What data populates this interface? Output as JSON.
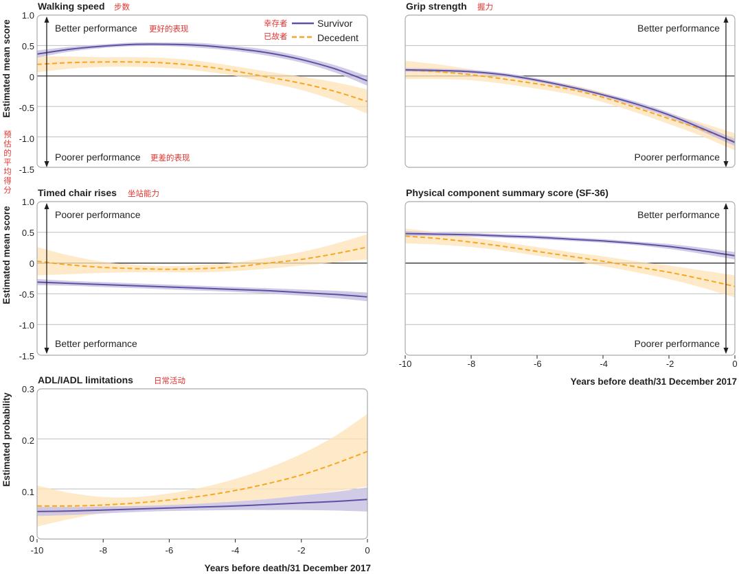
{
  "chart_data": [
    {
      "id": "walking",
      "type": "line",
      "title": "Walking speed",
      "title_zh": "步数",
      "ylabel": "Estimated mean score",
      "ylabel_zh": "预估的平均得分",
      "xlim": [
        -10,
        0
      ],
      "ylim": [
        -1.5,
        1.0
      ],
      "yticks": [
        1.0,
        0.5,
        0,
        -0.5,
        -1.0,
        -1.5
      ],
      "ytick_labels": [
        "1.0",
        "0.5",
        "0",
        "-0.5",
        "-1.0",
        "-1.5"
      ],
      "grid": true,
      "annotations": {
        "top": "Better performance",
        "top_zh": "更好的表现",
        "bottom": "Poorer performance",
        "bottom_zh": "更差的表现",
        "position": "left"
      },
      "legend": {
        "placement": "top-right",
        "entries": [
          {
            "label": "Survivor",
            "label_zh": "幸存者",
            "style": "solid"
          },
          {
            "label": "Decedent",
            "label_zh": "已故者",
            "style": "dashed"
          }
        ]
      },
      "series": [
        {
          "name": "Survivor",
          "x": [
            -10,
            -9,
            -8,
            -7,
            -6,
            -5,
            -4,
            -3,
            -2,
            -1,
            0
          ],
          "values": [
            0.36,
            0.44,
            0.49,
            0.52,
            0.52,
            0.5,
            0.45,
            0.38,
            0.27,
            0.12,
            -0.08
          ],
          "ci_low": [
            0.3,
            0.4,
            0.46,
            0.49,
            0.49,
            0.46,
            0.41,
            0.33,
            0.22,
            0.06,
            -0.16
          ],
          "ci_high": [
            0.42,
            0.48,
            0.52,
            0.55,
            0.55,
            0.54,
            0.49,
            0.43,
            0.32,
            0.18,
            0.0
          ]
        },
        {
          "name": "Decedent",
          "x": [
            -10,
            -9,
            -8,
            -7,
            -6,
            -5,
            -4,
            -3,
            -2,
            -1,
            0
          ],
          "values": [
            0.19,
            0.22,
            0.23,
            0.23,
            0.21,
            0.16,
            0.08,
            -0.02,
            -0.12,
            -0.25,
            -0.42
          ],
          "ci_low": [
            0.06,
            0.12,
            0.15,
            0.15,
            0.13,
            0.08,
            0.0,
            -0.11,
            -0.23,
            -0.4,
            -0.62
          ],
          "ci_high": [
            0.32,
            0.32,
            0.31,
            0.31,
            0.29,
            0.24,
            0.16,
            0.07,
            -0.01,
            -0.1,
            -0.22
          ]
        }
      ]
    },
    {
      "id": "grip",
      "type": "line",
      "title": "Grip strength",
      "title_zh": "握力",
      "xlim": [
        -10,
        0
      ],
      "ylim": [
        -1.5,
        1.0
      ],
      "yticks": [
        1.0,
        0.5,
        0,
        -0.5,
        -1.0,
        -1.5
      ],
      "grid": true,
      "annotations": {
        "top": "Better performance",
        "bottom": "Poorer performance",
        "position": "right"
      },
      "series": [
        {
          "name": "Survivor",
          "x": [
            -10,
            -9,
            -8,
            -7,
            -6,
            -5,
            -4,
            -3,
            -2,
            -1,
            0
          ],
          "values": [
            0.1,
            0.09,
            0.07,
            0.02,
            -0.07,
            -0.18,
            -0.31,
            -0.46,
            -0.64,
            -0.86,
            -1.09
          ],
          "ci_low": [
            0.07,
            0.06,
            0.04,
            -0.01,
            -0.1,
            -0.21,
            -0.34,
            -0.5,
            -0.68,
            -0.91,
            -1.15
          ],
          "ci_high": [
            0.13,
            0.12,
            0.1,
            0.05,
            -0.04,
            -0.15,
            -0.28,
            -0.42,
            -0.6,
            -0.81,
            -1.03
          ]
        },
        {
          "name": "Decedent",
          "x": [
            -10,
            -9,
            -8,
            -7,
            -6,
            -5,
            -4,
            -3,
            -2,
            -1,
            0
          ],
          "values": [
            0.1,
            0.07,
            0.02,
            -0.05,
            -0.13,
            -0.22,
            -0.35,
            -0.52,
            -0.7,
            -0.88,
            -1.08
          ],
          "ci_low": [
            -0.05,
            -0.05,
            -0.07,
            -0.13,
            -0.21,
            -0.3,
            -0.43,
            -0.6,
            -0.79,
            -0.99,
            -1.22
          ],
          "ci_high": [
            0.25,
            0.19,
            0.11,
            0.03,
            -0.05,
            -0.14,
            -0.27,
            -0.44,
            -0.61,
            -0.77,
            -0.94
          ]
        }
      ]
    },
    {
      "id": "chair",
      "type": "line",
      "title": "Timed chair rises",
      "title_zh": "坐站能力",
      "ylabel": "Estimated mean score",
      "xlim": [
        -10,
        0
      ],
      "ylim": [
        -1.5,
        1.0
      ],
      "yticks": [
        1.0,
        0.5,
        0,
        -0.5,
        -1.0,
        -1.5
      ],
      "ytick_labels": [
        "1.0",
        "0.5",
        "0",
        "-0.5",
        "-1.0",
        "-1.5"
      ],
      "grid": true,
      "annotations": {
        "top": "Poorer performance",
        "bottom": "Better performance",
        "position": "left"
      },
      "series": [
        {
          "name": "Survivor",
          "x": [
            -10,
            -9,
            -8,
            -7,
            -6,
            -5,
            -4,
            -3,
            -2,
            -1,
            0
          ],
          "values": [
            -0.31,
            -0.33,
            -0.35,
            -0.37,
            -0.39,
            -0.41,
            -0.43,
            -0.45,
            -0.48,
            -0.51,
            -0.55
          ],
          "ci_low": [
            -0.36,
            -0.37,
            -0.39,
            -0.41,
            -0.43,
            -0.45,
            -0.47,
            -0.5,
            -0.53,
            -0.57,
            -0.62
          ],
          "ci_high": [
            -0.26,
            -0.29,
            -0.31,
            -0.33,
            -0.35,
            -0.37,
            -0.39,
            -0.41,
            -0.43,
            -0.45,
            -0.48
          ]
        },
        {
          "name": "Decedent",
          "x": [
            -10,
            -9,
            -8,
            -7,
            -6,
            -5,
            -4,
            -3,
            -2,
            -1,
            0
          ],
          "values": [
            0.03,
            -0.03,
            -0.07,
            -0.09,
            -0.1,
            -0.09,
            -0.06,
            0.0,
            0.06,
            0.15,
            0.26
          ],
          "ci_low": [
            -0.2,
            -0.18,
            -0.16,
            -0.15,
            -0.15,
            -0.15,
            -0.13,
            -0.09,
            -0.04,
            0.01,
            0.06
          ],
          "ci_high": [
            0.26,
            0.12,
            0.02,
            -0.03,
            -0.05,
            -0.03,
            0.01,
            0.09,
            0.18,
            0.31,
            0.47
          ]
        }
      ]
    },
    {
      "id": "pcs",
      "type": "line",
      "title": "Physical component summary score (SF-36)",
      "xlabel": "Years before death/31 December 2017",
      "xlim": [
        -10,
        0
      ],
      "xticks": [
        -10,
        -8,
        -6,
        -4,
        -2,
        0
      ],
      "xtick_labels": [
        "-10",
        "-8",
        "-6",
        "-4",
        "-2",
        "0"
      ],
      "ylim": [
        -1.5,
        1.0
      ],
      "yticks": [
        1.0,
        0.5,
        0,
        -0.5,
        -1.0,
        -1.5
      ],
      "grid": true,
      "annotations": {
        "top": "Better performance",
        "bottom": "Poorer performance",
        "position": "right"
      },
      "series": [
        {
          "name": "Survivor",
          "x": [
            -10,
            -9,
            -8,
            -7,
            -6,
            -5,
            -4,
            -3,
            -2,
            -1,
            0
          ],
          "values": [
            0.48,
            0.47,
            0.46,
            0.44,
            0.42,
            0.39,
            0.36,
            0.32,
            0.27,
            0.2,
            0.12
          ],
          "ci_low": [
            0.44,
            0.44,
            0.43,
            0.41,
            0.39,
            0.36,
            0.33,
            0.29,
            0.23,
            0.15,
            0.06
          ],
          "ci_high": [
            0.52,
            0.5,
            0.49,
            0.47,
            0.45,
            0.42,
            0.39,
            0.35,
            0.31,
            0.25,
            0.18
          ]
        },
        {
          "name": "Decedent",
          "x": [
            -10,
            -9,
            -8,
            -7,
            -6,
            -5,
            -4,
            -3,
            -2,
            -1,
            0
          ],
          "values": [
            0.44,
            0.4,
            0.34,
            0.27,
            0.19,
            0.11,
            0.03,
            -0.06,
            -0.15,
            -0.26,
            -0.38
          ],
          "ci_low": [
            0.32,
            0.3,
            0.26,
            0.2,
            0.12,
            0.04,
            -0.05,
            -0.15,
            -0.26,
            -0.4,
            -0.56
          ],
          "ci_high": [
            0.56,
            0.5,
            0.42,
            0.34,
            0.26,
            0.18,
            0.11,
            0.03,
            -0.04,
            -0.12,
            -0.2
          ]
        }
      ]
    },
    {
      "id": "adl",
      "type": "line",
      "title": "ADL/IADL limitations",
      "title_zh": "日常活动",
      "ylabel": "Estimated probability",
      "xlabel": "Years before death/31 December 2017",
      "xlim": [
        -10,
        0
      ],
      "xticks": [
        -10,
        -8,
        -6,
        -4,
        -2,
        0
      ],
      "xtick_labels": [
        "-10",
        "-8",
        "-6",
        "-4",
        "-2",
        "0"
      ],
      "ylim": [
        0,
        0.3
      ],
      "yticks": [
        0.3,
        0.2,
        0.1,
        0
      ],
      "ytick_labels": [
        "0.3",
        "0.2",
        "0.1",
        "0"
      ],
      "grid": true,
      "series": [
        {
          "name": "Survivor",
          "x": [
            -10,
            -9,
            -8,
            -7,
            -6,
            -5,
            -4,
            -3,
            -2,
            -1,
            0
          ],
          "values": [
            0.055,
            0.056,
            0.058,
            0.06,
            0.062,
            0.064,
            0.066,
            0.069,
            0.072,
            0.075,
            0.079
          ],
          "ci_low": [
            0.046,
            0.048,
            0.051,
            0.054,
            0.056,
            0.057,
            0.058,
            0.058,
            0.058,
            0.057,
            0.055
          ],
          "ci_high": [
            0.064,
            0.064,
            0.065,
            0.066,
            0.068,
            0.071,
            0.075,
            0.08,
            0.087,
            0.094,
            0.103
          ]
        },
        {
          "name": "Decedent",
          "x": [
            -10,
            -9,
            -8,
            -7,
            -6,
            -5,
            -4,
            -3,
            -2,
            -1,
            0
          ],
          "values": [
            0.066,
            0.066,
            0.068,
            0.072,
            0.078,
            0.086,
            0.097,
            0.111,
            0.128,
            0.15,
            0.175
          ],
          "ci_low": [
            0.025,
            0.04,
            0.052,
            0.06,
            0.065,
            0.07,
            0.075,
            0.08,
            0.087,
            0.095,
            0.105
          ],
          "ci_high": [
            0.107,
            0.092,
            0.084,
            0.084,
            0.091,
            0.103,
            0.12,
            0.142,
            0.17,
            0.205,
            0.25
          ]
        }
      ]
    }
  ],
  "colors": {
    "survivor": "#5e4fa2",
    "survivor_band": "#c9c2e2",
    "decedent": "#f5a623",
    "decedent_band": "#fde3b5",
    "zh_text": "#e3342f"
  }
}
